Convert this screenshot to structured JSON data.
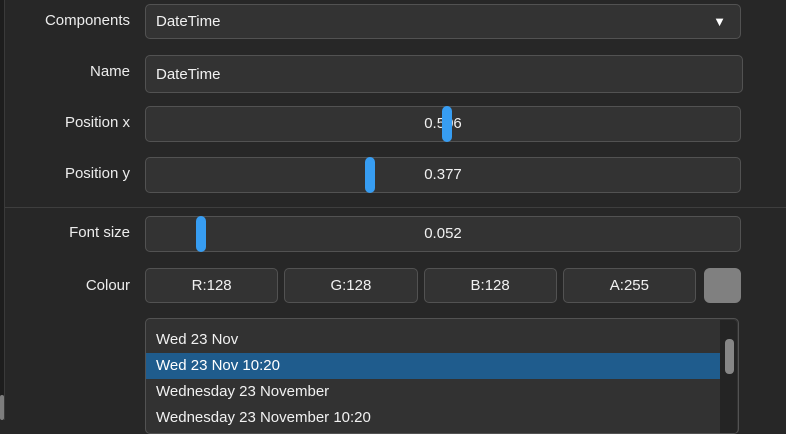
{
  "components": {
    "label": "Components",
    "value": "DateTime",
    "arrow_icon": "▼"
  },
  "name": {
    "label": "Name",
    "value": "DateTime"
  },
  "position_x": {
    "label": "Position x",
    "value": "0.506",
    "handle_pct": 50.6
  },
  "position_y": {
    "label": "Position y",
    "value": "0.377",
    "handle_pct": 37.7
  },
  "font_size": {
    "label": "Font size",
    "value": "0.052",
    "handle_pct": 9.2
  },
  "colour": {
    "label": "Colour",
    "buttons": [
      {
        "label": "R:128"
      },
      {
        "label": "G:128"
      },
      {
        "label": "B:128"
      },
      {
        "label": "A:255"
      }
    ],
    "swatch_color": "#808080"
  },
  "date_list": {
    "items": [
      "Wed 23 Nov",
      "Wed 23 Nov 10:20",
      "Wednesday 23 November",
      "Wednesday 23 November 10:20"
    ],
    "selected_index": 1,
    "selected_color": "#1f5c8d"
  },
  "theme": {
    "slider_handle_color": "#379df2"
  }
}
